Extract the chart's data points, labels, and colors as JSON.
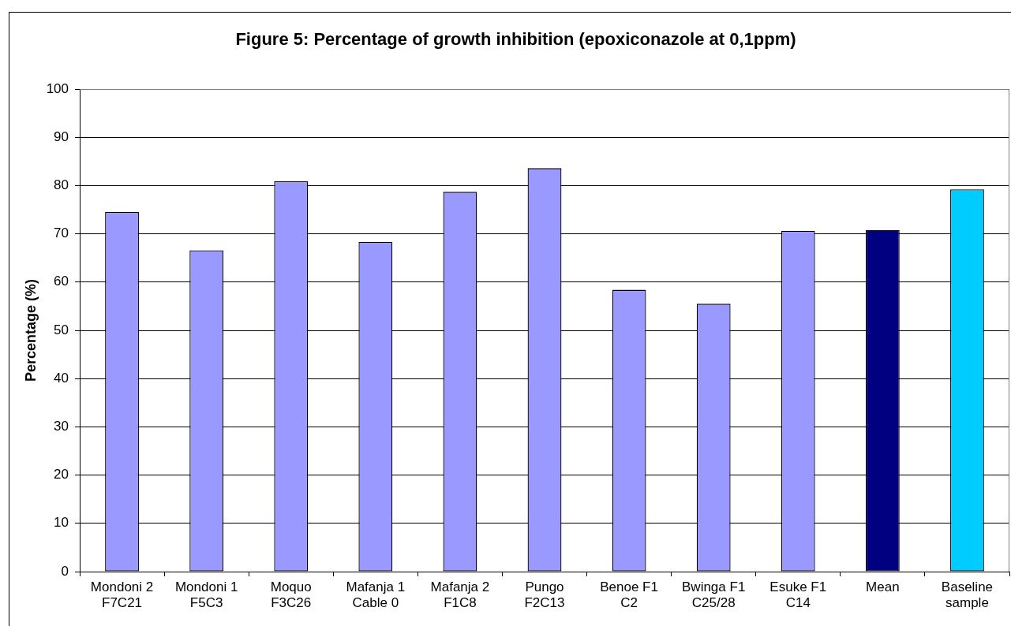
{
  "chart_data": {
    "type": "bar",
    "title": "Figure 5: Percentage of growth inhibition (epoxiconazole at 0,1ppm)",
    "ylabel": "Percentage (%)",
    "categories": [
      "Mondoni 2 F7C21",
      "Mondoni 1 F5C3",
      "Moquo F3C26",
      "Mafanja 1 Cable 0",
      "Mafanja 2 F1C8",
      "Pungo F2C13",
      "Benoe F1 C2",
      "Bwinga F1 C25/28",
      "Esuke F1 C14",
      "Mean",
      "Baseline sample"
    ],
    "values": [
      74.5,
      66.6,
      80.9,
      68.3,
      78.7,
      83.6,
      58.4,
      55.5,
      70.6,
      70.8,
      79.2
    ],
    "colors": [
      "#9999ff",
      "#9999ff",
      "#9999ff",
      "#9999ff",
      "#9999ff",
      "#9999ff",
      "#9999ff",
      "#9999ff",
      "#9999ff",
      "#000080",
      "#00ccff"
    ],
    "ylim": [
      0,
      100
    ],
    "yticks": [
      0,
      10,
      20,
      30,
      40,
      50,
      60,
      70,
      80,
      90,
      100
    ],
    "grid": "y"
  }
}
